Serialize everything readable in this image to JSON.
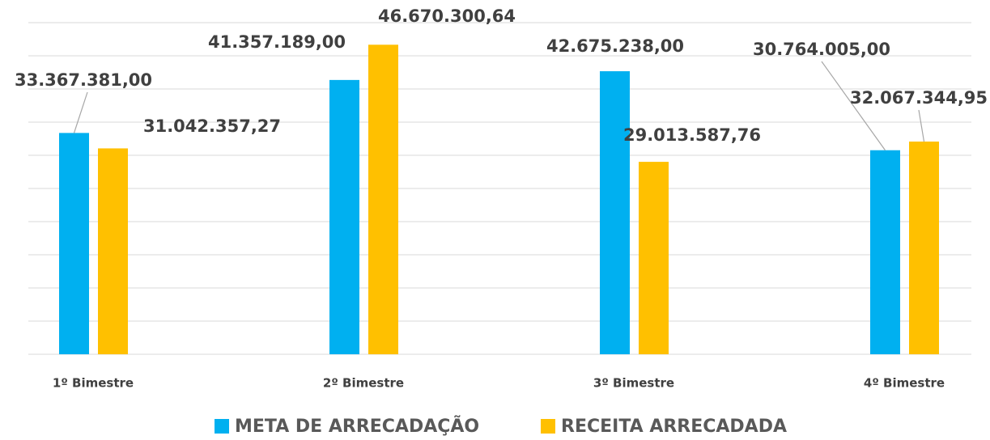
{
  "chart_data": {
    "type": "bar",
    "categories": [
      "1º Bimestre",
      "2º Bimestre",
      "3º Bimestre",
      "4º Bimestre"
    ],
    "series": [
      {
        "name": "META DE ARRECADAÇÃO",
        "color": "#00b0f0",
        "values": [
          33367381.0,
          41357189.0,
          42675238.0,
          30764005.0
        ],
        "value_labels": [
          "33.367.381,00",
          "41.357.189,00",
          "42.675.238,00",
          "30.764.005,00"
        ]
      },
      {
        "name": "RECEITA ARRECADADA",
        "color": "#ffc000",
        "values": [
          31042357.27,
          46670300.64,
          29013587.76,
          32067344.95
        ],
        "value_labels": [
          "31.042.357,27",
          "46.670.300,64",
          "29.013.587,76",
          "32.067.344,95"
        ]
      }
    ],
    "ylim": [
      0,
      50000000
    ],
    "yticks": [
      0,
      5000000,
      10000000,
      15000000,
      20000000,
      25000000,
      30000000,
      35000000,
      40000000,
      45000000,
      50000000
    ],
    "grid": true,
    "legend": "bottom"
  }
}
